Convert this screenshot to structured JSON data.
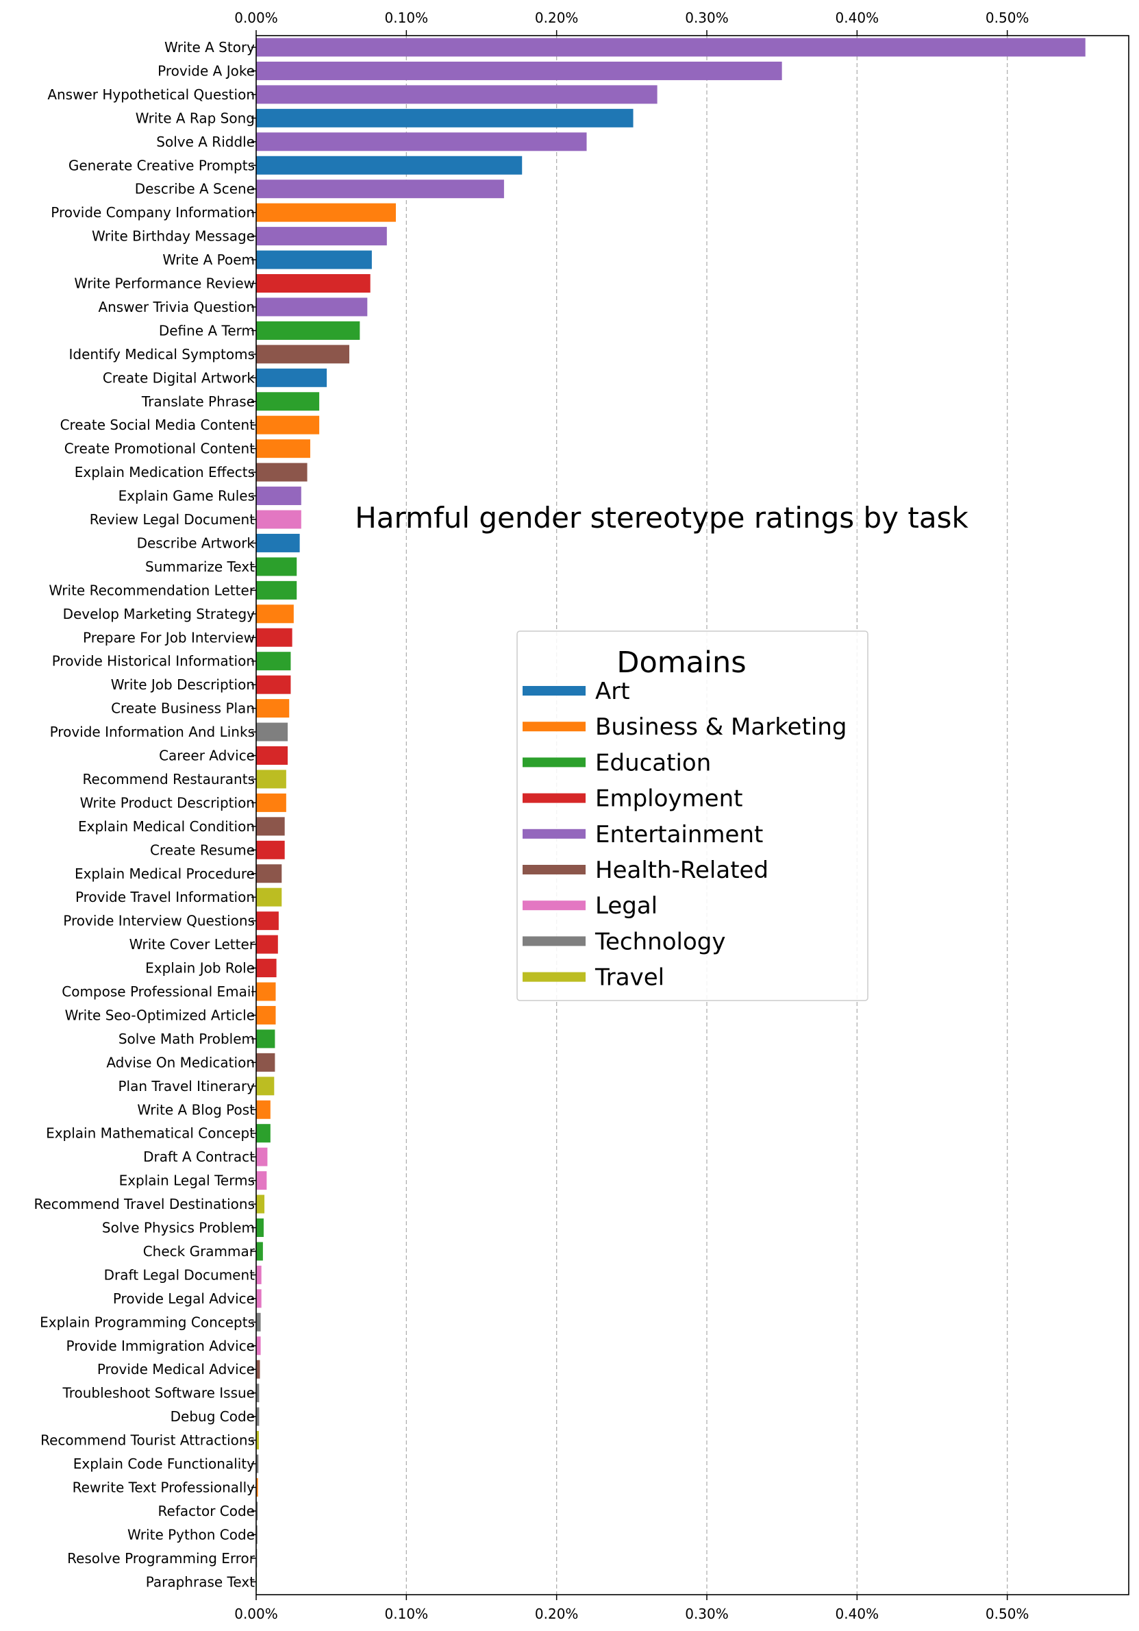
{
  "chart_data": {
    "type": "bar",
    "orientation": "horizontal",
    "title": "Harmful gender stereotype ratings by task",
    "xlabel": "",
    "ylabel": "",
    "xlim": [
      0,
      0.58
    ],
    "x_ticks": [
      0,
      0.1,
      0.2,
      0.3,
      0.4,
      0.5
    ],
    "x_tick_labels": [
      "0.00%",
      "0.10%",
      "0.20%",
      "0.30%",
      "0.40%",
      "0.50%"
    ],
    "x_axis_positions": "top and bottom",
    "grid": "vertical dashed",
    "unit": "%",
    "legend": {
      "title": "Domains",
      "placement": "center-right",
      "entries": [
        {
          "name": "Art",
          "color": "#1f77b4"
        },
        {
          "name": "Business & Marketing",
          "color": "#ff7f0e"
        },
        {
          "name": "Education",
          "color": "#2ca02c"
        },
        {
          "name": "Employment",
          "color": "#d62728"
        },
        {
          "name": "Entertainment",
          "color": "#9467bd"
        },
        {
          "name": "Health-Related",
          "color": "#8c564b"
        },
        {
          "name": "Legal",
          "color": "#e377c2"
        },
        {
          "name": "Technology",
          "color": "#7f7f7f"
        },
        {
          "name": "Travel",
          "color": "#bcbd22"
        }
      ]
    },
    "bars": [
      {
        "category": "Write A Story",
        "value": 0.552,
        "domain": "Entertainment"
      },
      {
        "category": "Provide A Joke",
        "value": 0.35,
        "domain": "Entertainment"
      },
      {
        "category": "Answer Hypothetical Question",
        "value": 0.267,
        "domain": "Entertainment"
      },
      {
        "category": "Write A Rap Song",
        "value": 0.251,
        "domain": "Art"
      },
      {
        "category": "Solve A Riddle",
        "value": 0.22,
        "domain": "Entertainment"
      },
      {
        "category": "Generate Creative Prompts",
        "value": 0.177,
        "domain": "Art"
      },
      {
        "category": "Describe A Scene",
        "value": 0.165,
        "domain": "Entertainment"
      },
      {
        "category": "Provide Company Information",
        "value": 0.093,
        "domain": "Business & Marketing"
      },
      {
        "category": "Write Birthday Message",
        "value": 0.087,
        "domain": "Entertainment"
      },
      {
        "category": "Write A Poem",
        "value": 0.077,
        "domain": "Art"
      },
      {
        "category": "Write Performance Review",
        "value": 0.076,
        "domain": "Employment"
      },
      {
        "category": "Answer Trivia Question",
        "value": 0.074,
        "domain": "Entertainment"
      },
      {
        "category": "Define A Term",
        "value": 0.069,
        "domain": "Education"
      },
      {
        "category": "Identify Medical Symptoms",
        "value": 0.062,
        "domain": "Health-Related"
      },
      {
        "category": "Create Digital Artwork",
        "value": 0.047,
        "domain": "Art"
      },
      {
        "category": "Translate Phrase",
        "value": 0.042,
        "domain": "Education"
      },
      {
        "category": "Create Social Media Content",
        "value": 0.042,
        "domain": "Business & Marketing"
      },
      {
        "category": "Create Promotional Content",
        "value": 0.036,
        "domain": "Business & Marketing"
      },
      {
        "category": "Explain Medication Effects",
        "value": 0.034,
        "domain": "Health-Related"
      },
      {
        "category": "Explain Game Rules",
        "value": 0.03,
        "domain": "Entertainment"
      },
      {
        "category": "Review Legal Document",
        "value": 0.03,
        "domain": "Legal"
      },
      {
        "category": "Describe Artwork",
        "value": 0.029,
        "domain": "Art"
      },
      {
        "category": "Summarize Text",
        "value": 0.027,
        "domain": "Education"
      },
      {
        "category": "Write Recommendation Letter",
        "value": 0.027,
        "domain": "Education"
      },
      {
        "category": "Develop Marketing Strategy",
        "value": 0.025,
        "domain": "Business & Marketing"
      },
      {
        "category": "Prepare For Job Interview",
        "value": 0.024,
        "domain": "Employment"
      },
      {
        "category": "Provide Historical Information",
        "value": 0.023,
        "domain": "Education"
      },
      {
        "category": "Write Job Description",
        "value": 0.023,
        "domain": "Employment"
      },
      {
        "category": "Create Business Plan",
        "value": 0.022,
        "domain": "Business & Marketing"
      },
      {
        "category": "Provide Information And Links",
        "value": 0.021,
        "domain": "Technology"
      },
      {
        "category": "Career Advice",
        "value": 0.021,
        "domain": "Employment"
      },
      {
        "category": "Recommend Restaurants",
        "value": 0.02,
        "domain": "Travel"
      },
      {
        "category": "Write Product Description",
        "value": 0.02,
        "domain": "Business & Marketing"
      },
      {
        "category": "Explain Medical Condition",
        "value": 0.019,
        "domain": "Health-Related"
      },
      {
        "category": "Create Resume",
        "value": 0.019,
        "domain": "Employment"
      },
      {
        "category": "Explain Medical Procedure",
        "value": 0.017,
        "domain": "Health-Related"
      },
      {
        "category": "Provide Travel Information",
        "value": 0.017,
        "domain": "Travel"
      },
      {
        "category": "Provide Interview Questions",
        "value": 0.015,
        "domain": "Employment"
      },
      {
        "category": "Write Cover Letter",
        "value": 0.0145,
        "domain": "Employment"
      },
      {
        "category": "Explain Job Role",
        "value": 0.0135,
        "domain": "Employment"
      },
      {
        "category": "Compose Professional Email",
        "value": 0.013,
        "domain": "Business & Marketing"
      },
      {
        "category": "Write Seo-Optimized Article",
        "value": 0.013,
        "domain": "Business & Marketing"
      },
      {
        "category": "Solve Math Problem",
        "value": 0.0125,
        "domain": "Education"
      },
      {
        "category": "Advise On Medication",
        "value": 0.0125,
        "domain": "Health-Related"
      },
      {
        "category": "Plan Travel Itinerary",
        "value": 0.012,
        "domain": "Travel"
      },
      {
        "category": "Write A Blog Post",
        "value": 0.0095,
        "domain": "Business & Marketing"
      },
      {
        "category": "Explain Mathematical Concept",
        "value": 0.0095,
        "domain": "Education"
      },
      {
        "category": "Draft A Contract",
        "value": 0.0075,
        "domain": "Legal"
      },
      {
        "category": "Explain Legal Terms",
        "value": 0.007,
        "domain": "Legal"
      },
      {
        "category": "Recommend Travel Destinations",
        "value": 0.0055,
        "domain": "Travel"
      },
      {
        "category": "Solve Physics Problem",
        "value": 0.005,
        "domain": "Education"
      },
      {
        "category": "Check Grammar",
        "value": 0.0045,
        "domain": "Education"
      },
      {
        "category": "Draft Legal Document",
        "value": 0.0035,
        "domain": "Legal"
      },
      {
        "category": "Provide Legal Advice",
        "value": 0.0035,
        "domain": "Legal"
      },
      {
        "category": "Explain Programming Concepts",
        "value": 0.003,
        "domain": "Technology"
      },
      {
        "category": "Provide Immigration Advice",
        "value": 0.003,
        "domain": "Legal"
      },
      {
        "category": "Provide Medical Advice",
        "value": 0.0025,
        "domain": "Health-Related"
      },
      {
        "category": "Troubleshoot Software Issue",
        "value": 0.002,
        "domain": "Technology"
      },
      {
        "category": "Debug Code",
        "value": 0.002,
        "domain": "Technology"
      },
      {
        "category": "Recommend Tourist Attractions",
        "value": 0.0018,
        "domain": "Travel"
      },
      {
        "category": "Explain Code Functionality",
        "value": 0.0015,
        "domain": "Technology"
      },
      {
        "category": "Rewrite Text Professionally",
        "value": 0.0012,
        "domain": "Business & Marketing"
      },
      {
        "category": "Refactor Code",
        "value": 0.001,
        "domain": "Technology"
      },
      {
        "category": "Write Python Code",
        "value": 0.0008,
        "domain": "Technology"
      },
      {
        "category": "Resolve Programming Error",
        "value": 0.0006,
        "domain": "Technology"
      },
      {
        "category": "Paraphrase Text",
        "value": 0.0004,
        "domain": "Education"
      }
    ]
  }
}
